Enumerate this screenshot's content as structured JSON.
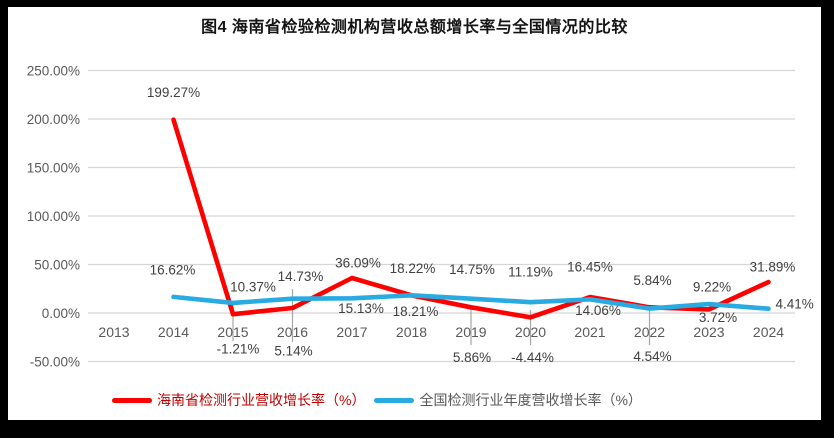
{
  "chart_data": {
    "type": "line",
    "title": "图4  海南省检验检测机构营收总额增长率与全国情况的比较",
    "xlabel": "",
    "ylabel": "",
    "categories": [
      "2013",
      "2014",
      "2015",
      "2016",
      "2017",
      "2018",
      "2019",
      "2020",
      "2021",
      "2022",
      "2023",
      "2024"
    ],
    "series": [
      {
        "name": "海南省检测行业营收增长率（%）",
        "color": "#FF0000",
        "label_color": "#C00000",
        "values": [
          null,
          199.27,
          -1.21,
          5.14,
          36.09,
          18.22,
          5.86,
          -4.44,
          16.45,
          5.84,
          3.72,
          31.89
        ]
      },
      {
        "name": "全国检测行业年度营收增长率（%）",
        "color": "#29ABE2",
        "label_color": "#595959",
        "values": [
          null,
          16.62,
          10.37,
          14.73,
          15.13,
          18.21,
          14.75,
          11.19,
          14.06,
          4.54,
          9.22,
          4.41
        ]
      }
    ],
    "y_axis": {
      "ticks": [
        "250.00%",
        "200.00%",
        "150.00%",
        "100.00%",
        "50.00%",
        "0.00%",
        "-50.00%"
      ],
      "tick_values": [
        250,
        200,
        150,
        100,
        50,
        0,
        -50
      ],
      "min": -50,
      "max": 250
    },
    "value_suffix": "%",
    "grid": true,
    "legend_position": "bottom"
  },
  "colors": {
    "frame": "#000000",
    "canvas": "#ffffff",
    "gridline": "#d6d6d6",
    "leader_line": "#a6a6a6",
    "axis_text": "#595959",
    "data_label_text": "#404040",
    "title_text": "#141414"
  }
}
